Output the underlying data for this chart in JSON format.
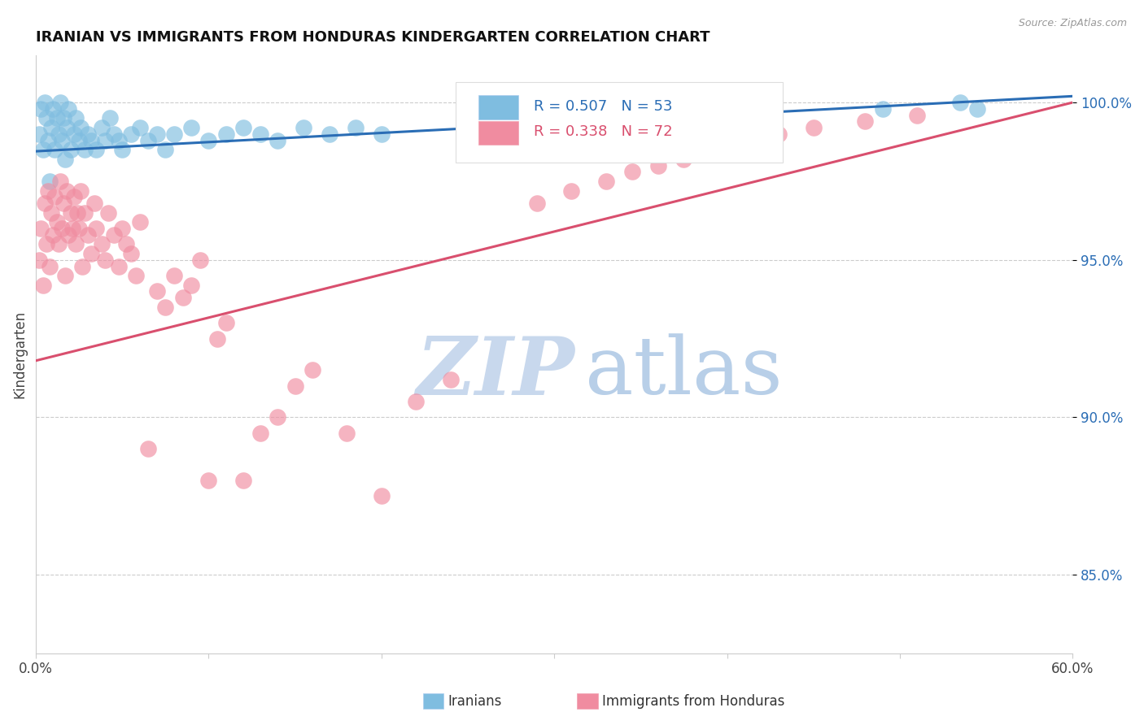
{
  "title": "IRANIAN VS IMMIGRANTS FROM HONDURAS KINDERGARTEN CORRELATION CHART",
  "source": "Source: ZipAtlas.com",
  "ylabel": "Kindergarten",
  "R1": 0.507,
  "N1": 53,
  "R2": 0.338,
  "N2": 72,
  "color1": "#7fbde0",
  "color2": "#f08ca0",
  "line_color1": "#2a6db5",
  "line_color2": "#d94f6e",
  "watermark_zip": "ZIP",
  "watermark_atlas": "atlas",
  "watermark_color_zip": "#c8d8ed",
  "watermark_color_atlas": "#b8cfe8",
  "background_color": "#ffffff",
  "grid_color": "#cccccc",
  "legend_label1": "Iranians",
  "legend_label2": "Immigrants from Honduras",
  "xlim": [
    0.0,
    0.6
  ],
  "ylim": [
    0.825,
    1.015
  ],
  "yticks": [
    0.85,
    0.9,
    0.95,
    1.0
  ],
  "ytick_labels": [
    "85.0%",
    "90.0%",
    "95.0%",
    "100.0%"
  ],
  "xtick_positions": [
    0.0,
    0.1,
    0.2,
    0.3,
    0.4,
    0.5,
    0.6
  ],
  "xtick_labels": [
    "0.0%",
    "",
    "",
    "",
    "",
    "",
    "60.0%"
  ],
  "iranians_x": [
    0.002,
    0.003,
    0.004,
    0.005,
    0.006,
    0.007,
    0.008,
    0.009,
    0.01,
    0.011,
    0.012,
    0.013,
    0.014,
    0.015,
    0.016,
    0.017,
    0.018,
    0.019,
    0.02,
    0.022,
    0.023,
    0.025,
    0.026,
    0.028,
    0.03,
    0.032,
    0.035,
    0.038,
    0.04,
    0.043,
    0.045,
    0.048,
    0.05,
    0.055,
    0.06,
    0.065,
    0.07,
    0.075,
    0.08,
    0.09,
    0.1,
    0.11,
    0.12,
    0.13,
    0.14,
    0.155,
    0.17,
    0.185,
    0.2,
    0.25,
    0.49,
    0.535,
    0.545
  ],
  "iranians_y": [
    0.99,
    0.998,
    0.985,
    1.0,
    0.995,
    0.988,
    0.975,
    0.992,
    0.998,
    0.985,
    0.995,
    0.99,
    1.0,
    0.988,
    0.995,
    0.982,
    0.992,
    0.998,
    0.985,
    0.99,
    0.995,
    0.988,
    0.992,
    0.985,
    0.99,
    0.988,
    0.985,
    0.992,
    0.988,
    0.995,
    0.99,
    0.988,
    0.985,
    0.99,
    0.992,
    0.988,
    0.99,
    0.985,
    0.99,
    0.992,
    0.988,
    0.99,
    0.992,
    0.99,
    0.988,
    0.992,
    0.99,
    0.992,
    0.99,
    0.992,
    0.998,
    1.0,
    0.998
  ],
  "honduras_x": [
    0.002,
    0.003,
    0.004,
    0.005,
    0.006,
    0.007,
    0.008,
    0.009,
    0.01,
    0.011,
    0.012,
    0.013,
    0.014,
    0.015,
    0.016,
    0.017,
    0.018,
    0.019,
    0.02,
    0.021,
    0.022,
    0.023,
    0.024,
    0.025,
    0.026,
    0.027,
    0.028,
    0.03,
    0.032,
    0.034,
    0.035,
    0.038,
    0.04,
    0.042,
    0.045,
    0.048,
    0.05,
    0.052,
    0.055,
    0.058,
    0.06,
    0.065,
    0.07,
    0.075,
    0.08,
    0.085,
    0.09,
    0.095,
    0.1,
    0.105,
    0.11,
    0.12,
    0.13,
    0.14,
    0.15,
    0.16,
    0.18,
    0.2,
    0.22,
    0.24,
    0.29,
    0.31,
    0.33,
    0.345,
    0.36,
    0.375,
    0.39,
    0.41,
    0.43,
    0.45,
    0.48,
    0.51
  ],
  "honduras_y": [
    0.95,
    0.96,
    0.942,
    0.968,
    0.955,
    0.972,
    0.948,
    0.965,
    0.958,
    0.97,
    0.962,
    0.955,
    0.975,
    0.96,
    0.968,
    0.945,
    0.972,
    0.958,
    0.965,
    0.96,
    0.97,
    0.955,
    0.965,
    0.96,
    0.972,
    0.948,
    0.965,
    0.958,
    0.952,
    0.968,
    0.96,
    0.955,
    0.95,
    0.965,
    0.958,
    0.948,
    0.96,
    0.955,
    0.952,
    0.945,
    0.962,
    0.89,
    0.94,
    0.935,
    0.945,
    0.938,
    0.942,
    0.95,
    0.88,
    0.925,
    0.93,
    0.88,
    0.895,
    0.9,
    0.91,
    0.915,
    0.895,
    0.875,
    0.905,
    0.912,
    0.968,
    0.972,
    0.975,
    0.978,
    0.98,
    0.982,
    0.984,
    0.988,
    0.99,
    0.992,
    0.994,
    0.996
  ]
}
